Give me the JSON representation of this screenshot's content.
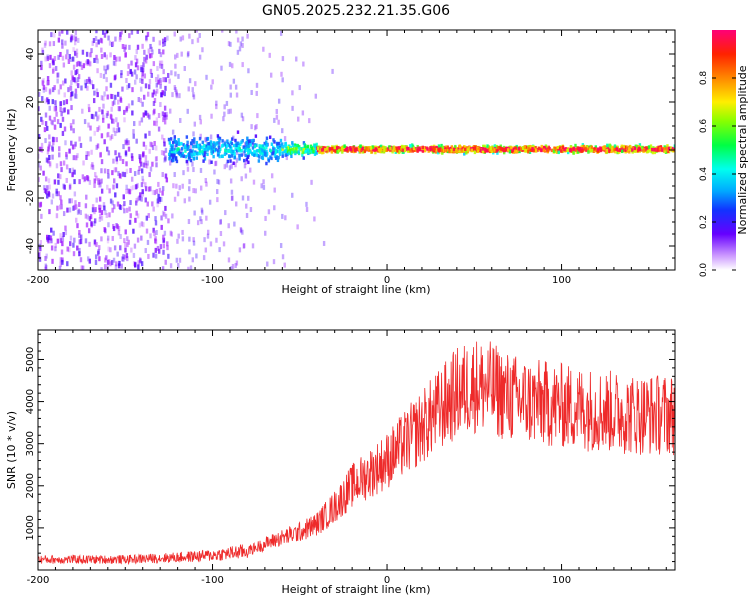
{
  "title": "GN05.2025.232.21.35.G06",
  "colors": {
    "snr_line": "#ee2a2a",
    "axis": "#000000"
  },
  "chart_data": [
    {
      "type": "heatmap",
      "xlabel": "Height of straight line (km)",
      "ylabel": "Frequency (Hz)",
      "xlim": [
        -200,
        165
      ],
      "ylim": [
        -50,
        50
      ],
      "xticks": [
        -200,
        -100,
        0,
        100
      ],
      "xtick_labels": [
        "-200",
        "-100",
        "0",
        "100"
      ],
      "yticks": [
        -40,
        -20,
        0,
        20,
        40
      ],
      "ytick_labels": [
        "-40",
        "-20",
        "0",
        "20",
        "40"
      ],
      "colorbar": {
        "label": "Normalized spectral amplitude",
        "range": [
          0,
          1
        ],
        "ticks": [
          0.0,
          0.2,
          0.4,
          0.6,
          0.8
        ],
        "tick_labels": [
          "0.0",
          "0.2",
          "0.4",
          "0.6",
          "0.8"
        ],
        "colormap": [
          "#ffffff",
          "#9900ff",
          "#3300ff",
          "#0099ff",
          "#00ffff",
          "#00ff33",
          "#ccff00",
          "#ffcc00",
          "#ff3300",
          "#ff0066"
        ]
      },
      "bands": [
        {
          "x_range": [
            -200,
            -125
          ],
          "freq_spread": 50,
          "intensity": 0.2,
          "description_level": "scattered"
        },
        {
          "x_range": [
            -125,
            -60
          ],
          "freq_spread": 8,
          "intensity": 0.35
        },
        {
          "x_range": [
            -60,
            -40
          ],
          "freq_spread": 4,
          "intensity": 0.5
        },
        {
          "x_range": [
            -40,
            165
          ],
          "freq_spread": 2,
          "intensity": 0.85
        }
      ],
      "grid": false,
      "legend": "none"
    },
    {
      "type": "line",
      "xlabel": "Height of straight line (km)",
      "ylabel": "SNR (10 * v/v)",
      "xlim": [
        -200,
        165
      ],
      "ylim": [
        0,
        5700
      ],
      "xticks": [
        -200,
        -100,
        0,
        100
      ],
      "xtick_labels": [
        "-200",
        "-100",
        "0",
        "100"
      ],
      "yticks": [
        1000,
        2000,
        3000,
        4000,
        5000
      ],
      "ytick_labels": [
        "1000",
        "2000",
        "3000",
        "4000",
        "5000"
      ],
      "trend": {
        "x": [
          -200,
          -150,
          -120,
          -100,
          -80,
          -65,
          -50,
          -40,
          -30,
          -20,
          -10,
          0,
          10,
          20,
          30,
          40,
          50,
          60,
          70,
          80,
          100,
          120,
          140,
          165
        ],
        "y": [
          250,
          250,
          300,
          350,
          450,
          700,
          900,
          1100,
          1500,
          2000,
          2300,
          2600,
          3000,
          3400,
          3800,
          4200,
          4400,
          4300,
          4100,
          4000,
          3900,
          3800,
          3700,
          3700
        ]
      },
      "grid": false,
      "legend": "none"
    }
  ]
}
